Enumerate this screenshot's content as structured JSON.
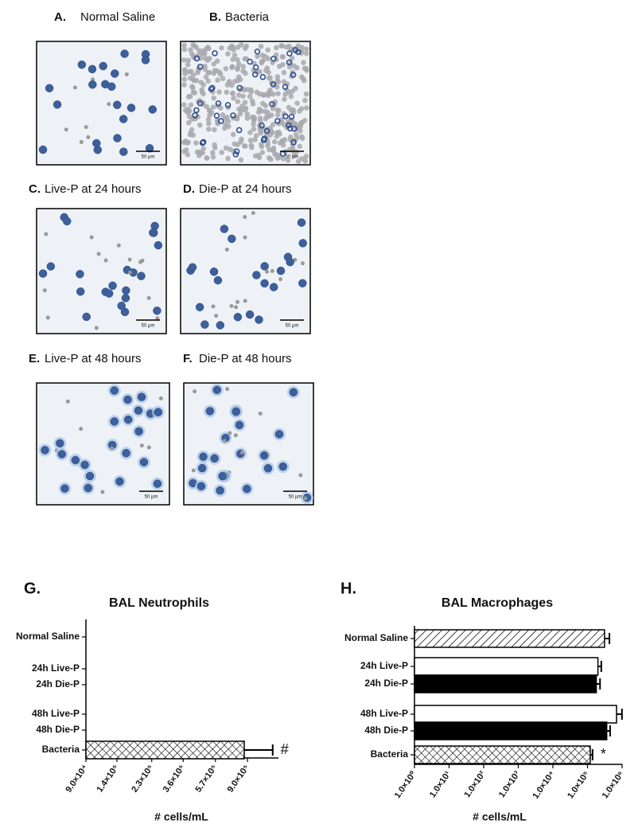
{
  "panels": [
    {
      "label": "A.",
      "title": "Normal Saline",
      "scale_bar": "50 μm"
    },
    {
      "label": "B.",
      "title": "Bacteria",
      "scale_bar": "50 μm"
    },
    {
      "label": "C.",
      "title": "Live-P at 24 hours",
      "scale_bar": "50 μm"
    },
    {
      "label": "D.",
      "title": "Die-P at 24 hours",
      "scale_bar": "50 μm"
    },
    {
      "label": "E.",
      "title": "Live-P at 48 hours",
      "scale_bar": "50 μm"
    },
    {
      "label": "F.",
      "title": "Die-P at 48 hours",
      "scale_bar": "50 μm"
    }
  ],
  "chart_data": [
    {
      "type": "bar",
      "orientation": "horizontal",
      "panel_label": "G.",
      "title": "BAL Neutrophils",
      "xlabel": "# cells/mL",
      "categories": [
        "Normal Saline",
        "24h Live-P",
        "24h Die-P",
        "48h Live-P",
        "48h Die-P",
        "Bacteria"
      ],
      "values": [
        null,
        null,
        null,
        null,
        null,
        860000
      ],
      "errors": [
        null,
        null,
        null,
        null,
        null,
        430000
      ],
      "fills": [
        "hatch",
        "white",
        "black",
        "white",
        "black",
        "crosshatch"
      ],
      "annotation": "#",
      "log_scale": true,
      "xlim": [
        90000,
        1400000
      ],
      "xticks": [
        {
          "value": 90000,
          "label": "9.0×10⁴"
        },
        {
          "value": 140000,
          "label": "1.4×10⁵"
        },
        {
          "value": 230000,
          "label": "2.3×10⁵"
        },
        {
          "value": 360000,
          "label": "3.6×10⁵"
        },
        {
          "value": 570000,
          "label": "5.7×10⁵"
        },
        {
          "value": 900000,
          "label": "9.0×10⁵"
        }
      ]
    },
    {
      "type": "bar",
      "orientation": "horizontal",
      "panel_label": "H.",
      "title": "BAL Macrophages",
      "xlabel": "# cells/mL",
      "categories": [
        "Normal Saline",
        "24h Live-P",
        "24h Die-P",
        "48h Live-P",
        "48h Die-P",
        "Bacteria"
      ],
      "values": [
        310000,
        200000,
        180000,
        690000,
        360000,
        120000
      ],
      "errors": [
        120000,
        50000,
        50000,
        300000,
        90000,
        20000
      ],
      "fills": [
        "hatch",
        "white",
        "black",
        "white",
        "black",
        "crosshatch"
      ],
      "annotation": "*",
      "log_scale": true,
      "xlim": [
        1,
        1000000
      ],
      "xticks": [
        {
          "value": 1,
          "label": "1.0×10⁰"
        },
        {
          "value": 10,
          "label": "1.0×10¹"
        },
        {
          "value": 100,
          "label": "1.0×10²"
        },
        {
          "value": 1000,
          "label": "1.0×10³"
        },
        {
          "value": 10000,
          "label": "1.0×10⁴"
        },
        {
          "value": 100000,
          "label": "1.0×10⁵"
        },
        {
          "value": 1000000,
          "label": "1.0×10⁶"
        }
      ]
    }
  ]
}
